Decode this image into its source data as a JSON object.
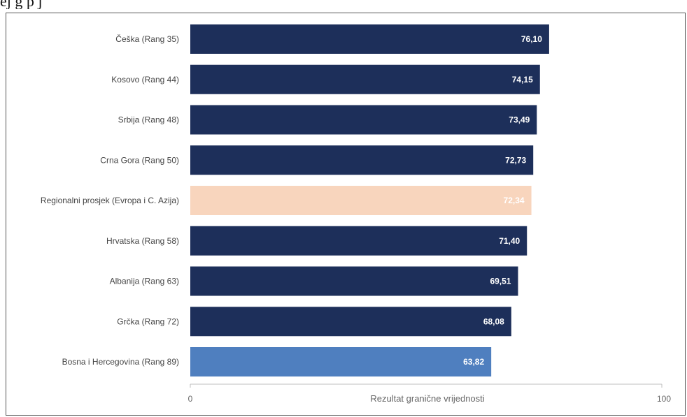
{
  "header": {
    "cut_text": "ej                                     g                                                                                    p                                                         j"
  },
  "chart_data": {
    "type": "bar",
    "orientation": "horizontal",
    "categories": [
      "Češka (Rang 35)",
      "Kosovo (Rang 44)",
      "Srbija (Rang 48)",
      "Crna Gora (Rang 50)",
      "Regionalni prosjek (Evropa i C. Azija)",
      "Hrvatska (Rang 58)",
      "Albanija (Rang 63)",
      "Grčka (Rang 72)",
      "Bosna i Hercegovina (Rang 89)"
    ],
    "values": [
      76.1,
      74.15,
      73.49,
      72.73,
      72.34,
      71.4,
      69.51,
      68.08,
      63.82
    ],
    "value_labels": [
      "76,10",
      "74,15",
      "73,49",
      "72,73",
      "72,34",
      "71,40",
      "69,51",
      "68,08",
      "63,82"
    ],
    "bar_colors": [
      "#1d2f5a",
      "#1d2f5a",
      "#1d2f5a",
      "#1d2f5a",
      "#f8d5bd",
      "#1d2f5a",
      "#1d2f5a",
      "#1d2f5a",
      "#4f7fbf"
    ],
    "xlabel": "Rezultat granične vrijednosti",
    "xlim": [
      0,
      100
    ],
    "tick_labels": [
      "0",
      "100"
    ],
    "grid": false
  }
}
